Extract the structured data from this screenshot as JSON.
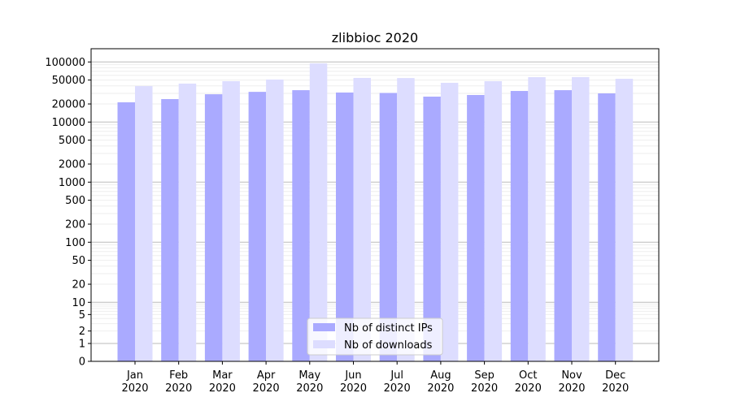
{
  "chart_data": {
    "type": "bar",
    "title": "zlibbioc 2020",
    "xlabel": "",
    "ylabel": "",
    "yscale": "symlog",
    "ylim": [
      0,
      140000
    ],
    "grid": true,
    "legend_position": "bottom-center",
    "categories": [
      "Jan\n2020",
      "Feb\n2020",
      "Mar\n2020",
      "Apr\n2020",
      "May\n2020",
      "Jun\n2020",
      "Jul\n2020",
      "Aug\n2020",
      "Sep\n2020",
      "Oct\n2020",
      "Nov\n2020",
      "Dec\n2020"
    ],
    "yticks": [
      0,
      1,
      2,
      5,
      10,
      20,
      50,
      100,
      200,
      500,
      1000,
      2000,
      5000,
      10000,
      20000,
      50000,
      100000
    ],
    "series": [
      {
        "name": "Nb of distinct IPs",
        "color": "#aaaaff",
        "values": [
          21300,
          24100,
          29000,
          31800,
          33900,
          31000,
          30500,
          26500,
          28200,
          32900,
          33900,
          30000
        ]
      },
      {
        "name": "Nb of downloads",
        "color": "#ddddff",
        "values": [
          39600,
          43600,
          47900,
          51000,
          94800,
          54200,
          54000,
          45000,
          47900,
          55800,
          56000,
          52500
        ]
      }
    ]
  }
}
